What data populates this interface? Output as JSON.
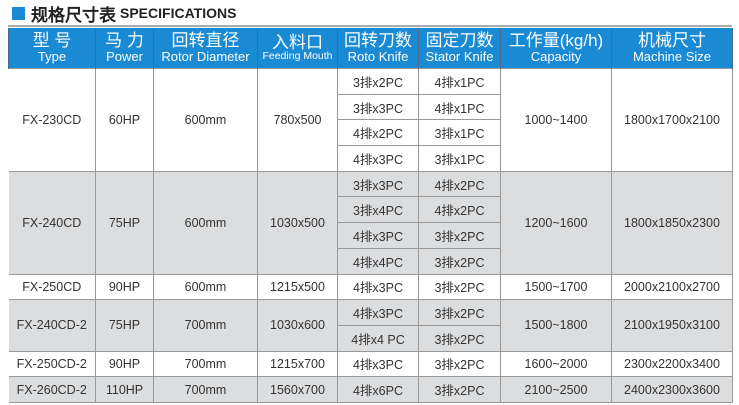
{
  "title": {
    "cn": "规格尺寸表",
    "en": "SPECIFICATIONS"
  },
  "colors": {
    "header": "#1a8ad4",
    "shaded_row": "#dcdddf"
  },
  "headers": [
    {
      "cn": "型 号",
      "en": "Type"
    },
    {
      "cn": "马 力",
      "en": "Power"
    },
    {
      "cn": "回转直径",
      "en": "Rotor Diameter"
    },
    {
      "cn": "入料口",
      "en": "Feeding Mouth"
    },
    {
      "cn": "回转刀数",
      "en": "Roto Knife"
    },
    {
      "cn": "固定刀数",
      "en": "Stator Knife"
    },
    {
      "cn": "工作量(kg/h)",
      "en": "Capacity"
    },
    {
      "cn": "机械尺寸",
      "en": "Machine Size"
    }
  ],
  "models": [
    {
      "type": "FX-230CD",
      "power": "60HP",
      "rotor": "600mm",
      "mouth": "780x500",
      "capacity": "1000~1400",
      "size": "1800x1700x2100",
      "shaded": false,
      "knives": [
        [
          "3排x2PC",
          "4排x1PC"
        ],
        [
          "3排x3PC",
          "4排x1PC"
        ],
        [
          "4排x2PC",
          "3排x1PC"
        ],
        [
          "4排x3PC",
          "3排x1PC"
        ]
      ]
    },
    {
      "type": "FX-240CD",
      "power": "75HP",
      "rotor": "600mm",
      "mouth": "1030x500",
      "capacity": "1200~1600",
      "size": "1800x1850x2300",
      "shaded": true,
      "knives": [
        [
          "3排x3PC",
          "4排x2PC"
        ],
        [
          "3排x4PC",
          "4排x2PC"
        ],
        [
          "4排x3PC",
          "3排x2PC"
        ],
        [
          "4排x4PC",
          "3排x2PC"
        ]
      ]
    },
    {
      "type": "FX-250CD",
      "power": "90HP",
      "rotor": "600mm",
      "mouth": "1215x500",
      "capacity": "1500~1700",
      "size": "2000x2100x2700",
      "shaded": false,
      "knives": [
        [
          "4排x3PC",
          "3排x2PC"
        ]
      ]
    },
    {
      "type": "FX-240CD-2",
      "power": "75HP",
      "rotor": "700mm",
      "mouth": "1030x600",
      "capacity": "1500~1800",
      "size": "2100x1950x3100",
      "shaded": true,
      "knives": [
        [
          "4排x3PC",
          "3排x2PC"
        ],
        [
          "4排x4 PC",
          "3排x2PC"
        ]
      ]
    },
    {
      "type": "FX-250CD-2",
      "power": "90HP",
      "rotor": "700mm",
      "mouth": "1215x700",
      "capacity": "1600~2000",
      "size": "2300x2200x3400",
      "shaded": false,
      "knives": [
        [
          "4排x3PC",
          "3排x2PC"
        ]
      ]
    },
    {
      "type": "FX-260CD-2",
      "power": "110HP",
      "rotor": "700mm",
      "mouth": "1560x700",
      "capacity": "2100~2500",
      "size": "2400x2300x3600",
      "shaded": true,
      "knives": [
        [
          "4排x6PC",
          "3排x2PC"
        ]
      ]
    }
  ]
}
